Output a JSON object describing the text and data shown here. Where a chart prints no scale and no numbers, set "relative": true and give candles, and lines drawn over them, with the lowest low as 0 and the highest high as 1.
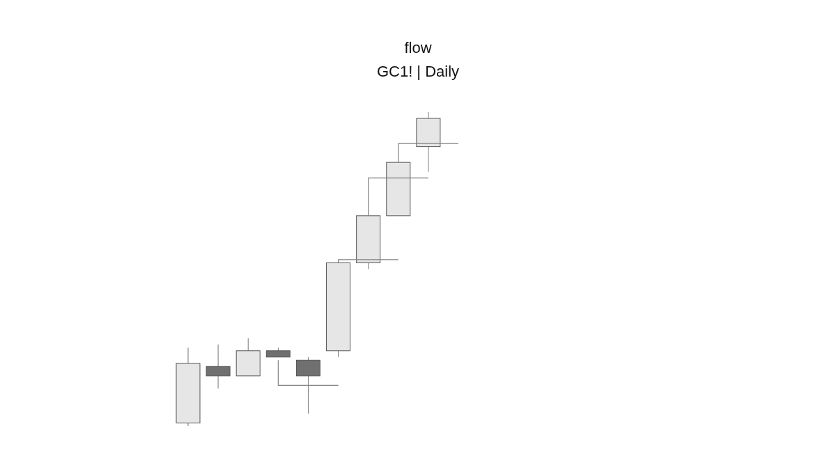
{
  "chart_data": {
    "type": "candlestick",
    "title": "flow",
    "subtitle": "GC1! | Daily",
    "relative": true,
    "categories": [
      null,
      null,
      null,
      null,
      null,
      null,
      null,
      null,
      null,
      null
    ],
    "ohlc": [
      [
        0.01,
        0.25,
        0,
        0.2
      ],
      [
        0.19,
        0.26,
        0.12,
        0.16
      ],
      [
        0.16,
        0.28,
        0.16,
        0.24
      ],
      [
        0.24,
        0.25,
        0.22,
        0.22
      ],
      [
        0.21,
        0.22,
        0.04,
        0.16
      ],
      [
        0.24,
        0.52,
        0.22,
        0.52
      ],
      [
        0.52,
        0.67,
        0.5,
        0.67
      ],
      [
        0.67,
        0.84,
        0.67,
        0.84
      ],
      [
        0.89,
        1,
        0.81,
        0.98
      ],
      null
    ],
    "colors": [
      "#e6e6e6",
      "#707070",
      "#e6e6e6",
      "#707070",
      "#707070",
      "#e6e6e6",
      "#e6e6e6",
      "#e6e6e6",
      "#e6e6e6",
      null
    ],
    "series": [
      {
        "type": "step",
        "color": "#808080",
        "values": [
          null,
          null,
          null,
          0.21,
          0.13,
          0.13,
          null,
          null,
          null,
          null
        ]
      },
      {
        "type": "step",
        "color": "#808080",
        "values": [
          null,
          null,
          null,
          null,
          null,
          0.52,
          0.53,
          0.53,
          null,
          null
        ]
      },
      {
        "type": "step",
        "color": "#808080",
        "values": [
          null,
          null,
          null,
          null,
          null,
          null,
          0.67,
          0.79,
          0.79,
          null
        ]
      },
      {
        "type": "step",
        "color": "#808080",
        "values": [
          null,
          null,
          null,
          null,
          null,
          null,
          null,
          0.84,
          0.9,
          0.9
        ]
      }
    ]
  }
}
